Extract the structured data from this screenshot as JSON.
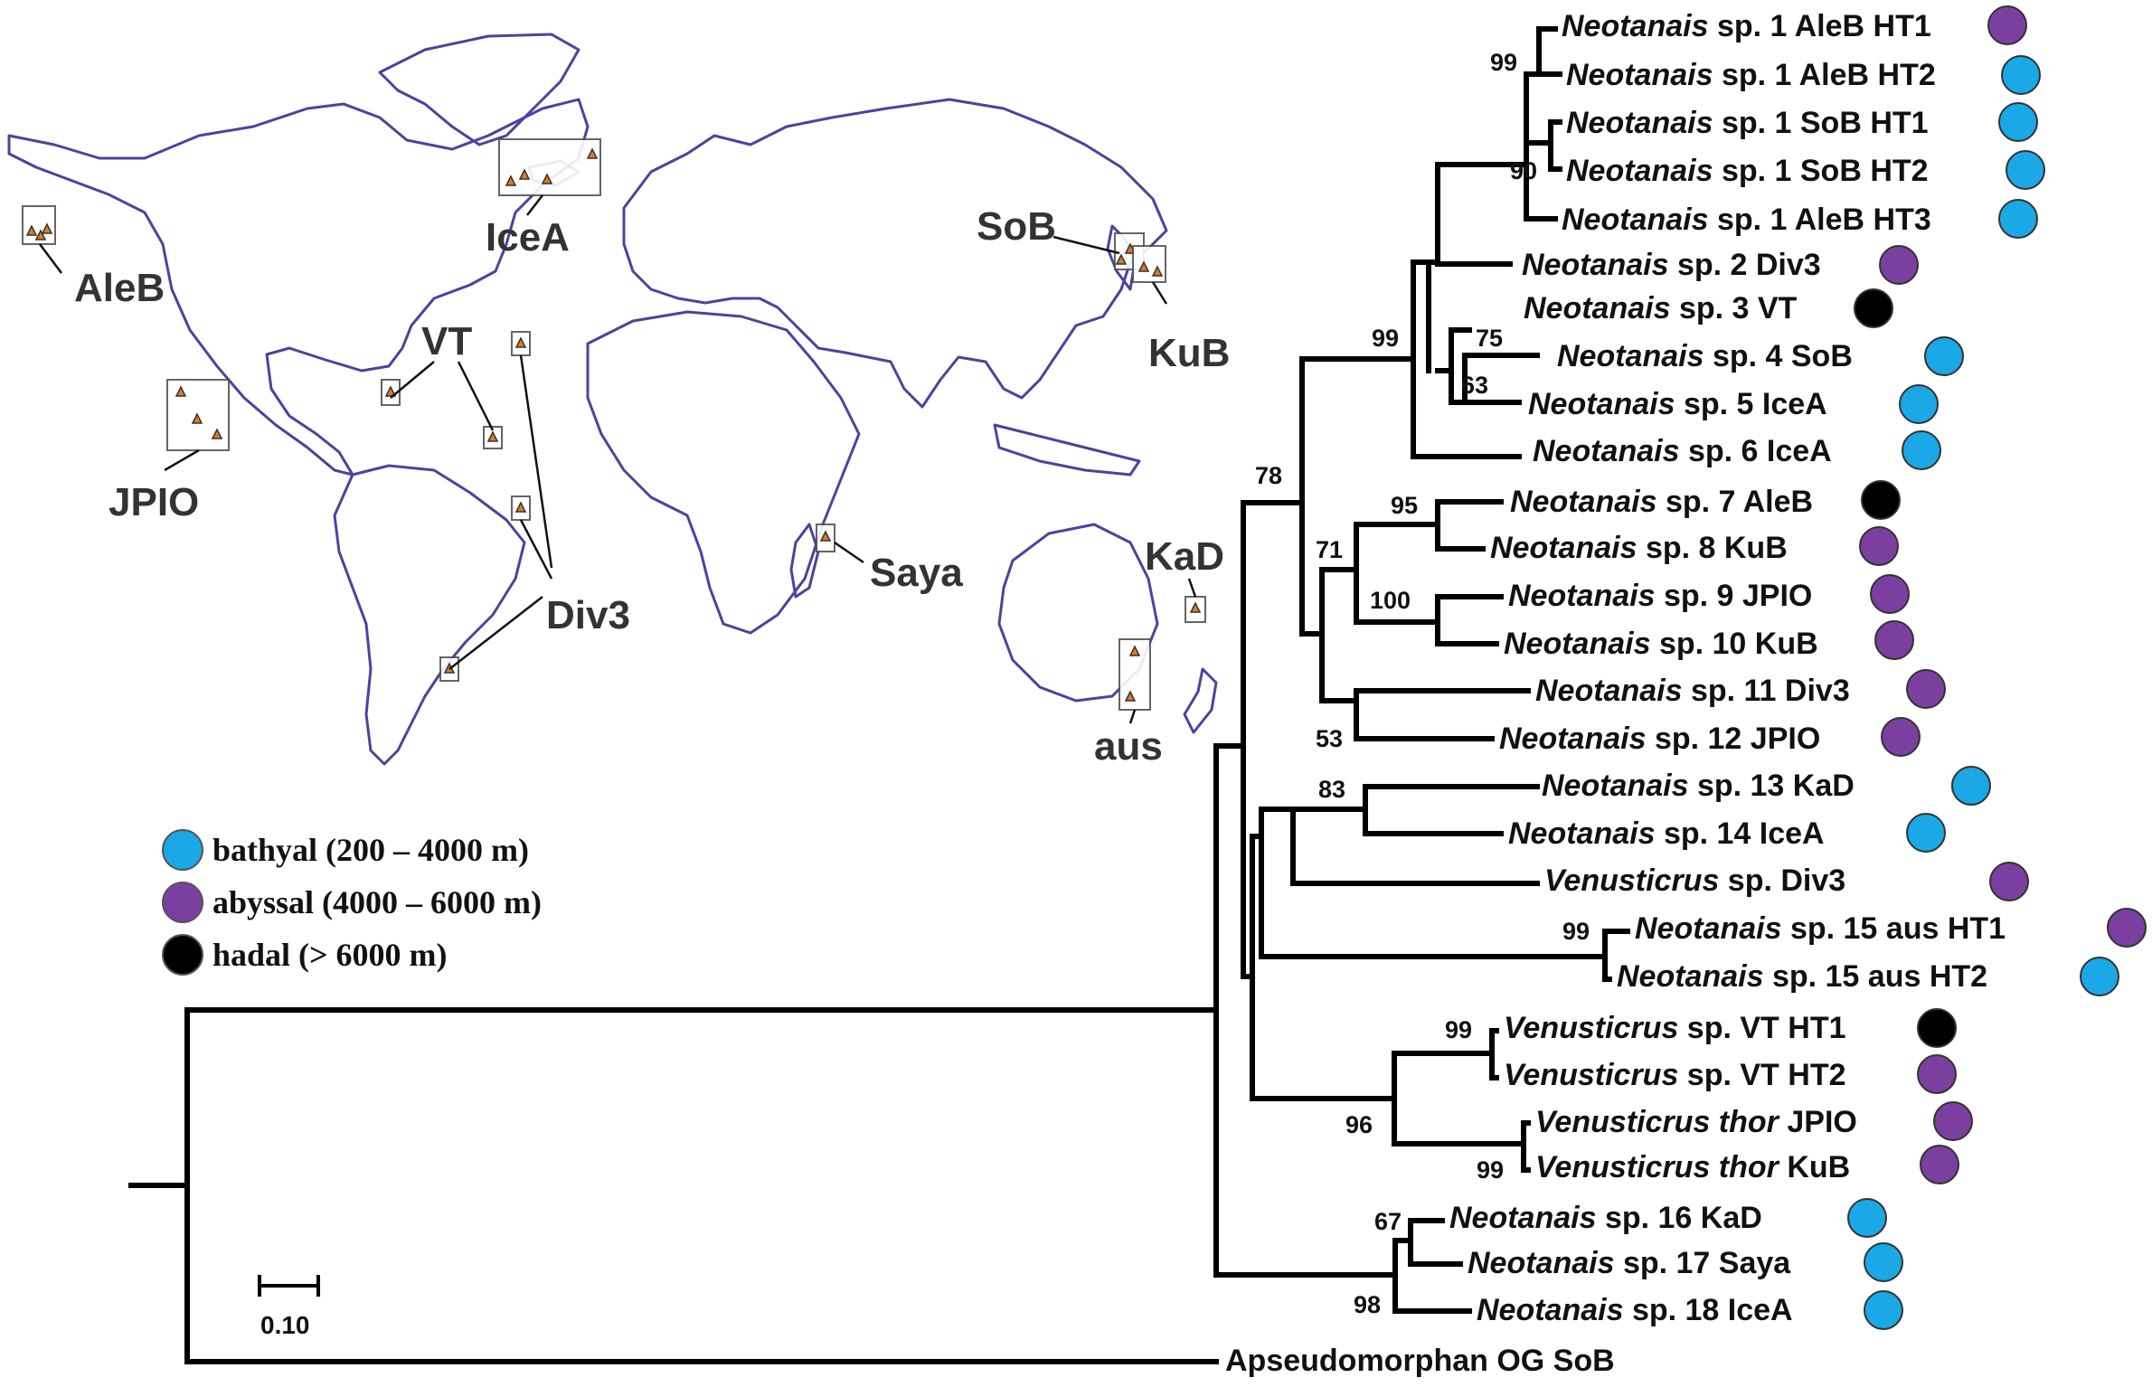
{
  "colors": {
    "bathyal": "#1aa8e6",
    "abyssal": "#7b3fa0",
    "hadal": "#000000",
    "coastline": "#4a43a0",
    "site_marker": "#e07a1f"
  },
  "map": {
    "labels": [
      "AleB",
      "IceA",
      "SoB",
      "KuB",
      "VT",
      "JPIO",
      "Div3",
      "Saya",
      "KaD",
      "aus"
    ]
  },
  "legend": [
    {
      "label": "bathyal (200 – 4000 m)",
      "color": "#1aa8e6"
    },
    {
      "label": "abyssal (4000 – 6000 m)",
      "color": "#7b3fa0"
    },
    {
      "label": "hadal (> 6000 m)",
      "color": "#000000"
    }
  ],
  "scale_bar": {
    "label": "0.10"
  },
  "tree": {
    "tips": [
      {
        "genus": "Neotanais",
        "rest": " sp. 1 AleB HT1",
        "depth": "abyssal"
      },
      {
        "genus": "Neotanais",
        "rest": " sp. 1 AleB HT2",
        "depth": "bathyal"
      },
      {
        "genus": "Neotanais",
        "rest": " sp. 1 SoB HT1",
        "depth": "bathyal"
      },
      {
        "genus": "Neotanais",
        "rest": " sp. 1 SoB HT2",
        "depth": "bathyal"
      },
      {
        "genus": "Neotanais",
        "rest": " sp. 1 AleB HT3",
        "depth": "bathyal"
      },
      {
        "genus": "Neotanais",
        "rest": " sp. 2 Div3",
        "depth": "abyssal"
      },
      {
        "genus": "Neotanais",
        "rest": " sp. 3 VT",
        "depth": "hadal"
      },
      {
        "genus": "Neotanais",
        "rest": " sp. 4 SoB",
        "depth": "bathyal"
      },
      {
        "genus": "Neotanais",
        "rest": " sp. 5 IceA",
        "depth": "bathyal"
      },
      {
        "genus": "Neotanais",
        "rest": " sp. 6 IceA",
        "depth": "bathyal"
      },
      {
        "genus": "Neotanais",
        "rest": " sp. 7 AleB",
        "depth": "hadal"
      },
      {
        "genus": "Neotanais",
        "rest": " sp. 8 KuB",
        "depth": "abyssal"
      },
      {
        "genus": "Neotanais",
        "rest": " sp. 9 JPIO",
        "depth": "abyssal"
      },
      {
        "genus": "Neotanais",
        "rest": " sp. 10 KuB",
        "depth": "abyssal"
      },
      {
        "genus": "Neotanais",
        "rest": " sp. 11 Div3",
        "depth": "abyssal"
      },
      {
        "genus": "Neotanais",
        "rest": " sp. 12 JPIO",
        "depth": "abyssal"
      },
      {
        "genus": "Neotanais",
        "rest": " sp. 13 KaD",
        "depth": "bathyal"
      },
      {
        "genus": "Neotanais",
        "rest": " sp. 14 IceA",
        "depth": "bathyal"
      },
      {
        "genus": "Venusticrus",
        "rest": " sp. Div3",
        "depth": "abyssal"
      },
      {
        "genus": "Neotanais",
        "rest": " sp. 15 aus HT1",
        "depth": "abyssal"
      },
      {
        "genus": "Neotanais",
        "rest": " sp. 15 aus HT2",
        "depth": "bathyal"
      },
      {
        "genus": "Venusticrus",
        "rest": " sp. VT HT1",
        "depth": "hadal"
      },
      {
        "genus": "Venusticrus",
        "rest": " sp. VT HT2",
        "depth": "abyssal"
      },
      {
        "genus": "Venusticrus thor",
        "rest": " JPIO",
        "depth": "abyssal"
      },
      {
        "genus": "Venusticrus thor",
        "rest": " KuB",
        "depth": "abyssal"
      },
      {
        "genus": "Neotanais",
        "rest": " sp. 16 KaD",
        "depth": "bathyal"
      },
      {
        "genus": "Neotanais",
        "rest": " sp. 17 Saya",
        "depth": "bathyal"
      },
      {
        "genus": "Neotanais",
        "rest": " sp. 18 IceA",
        "depth": "bathyal"
      },
      {
        "genus": "",
        "rest": "Apseudomorphan OG SoB",
        "depth": ""
      }
    ],
    "bootstrap": [
      "99",
      "90",
      "99",
      "75",
      "63",
      "78",
      "95",
      "71",
      "100",
      "53",
      "83",
      "99",
      "99",
      "96",
      "99",
      "67",
      "98"
    ]
  }
}
